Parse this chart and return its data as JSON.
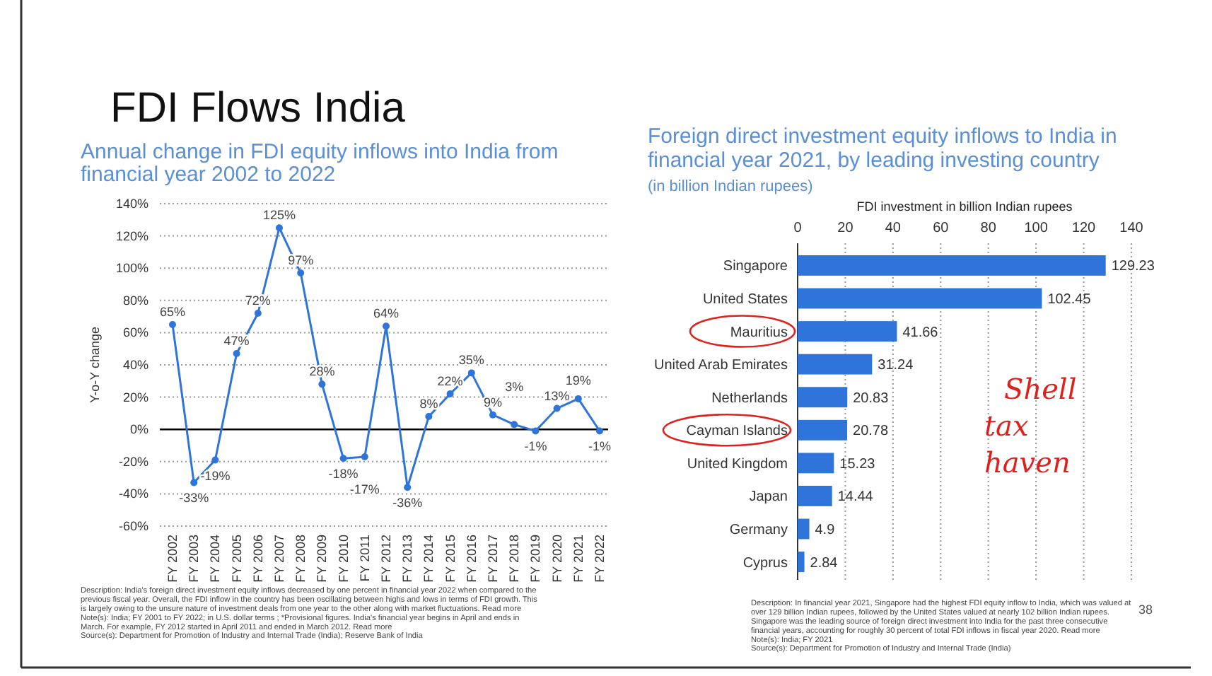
{
  "chart_data": [
    {
      "type": "line",
      "title": "FDI Flows India",
      "subtitle": "Annual change in FDI equity inflows into India from financial year 2002 to 2022",
      "ylabel": "Y-o-Y change",
      "categories": [
        "FY 2002",
        "FY 2003",
        "FY 2004",
        "FY 2005",
        "FY 2006",
        "FY 2007",
        "FY 2008",
        "FY 2009",
        "FY 2010",
        "FY 2011",
        "FY 2012",
        "FY 2013",
        "FY 2014",
        "FY 2015",
        "FY 2016",
        "FY 2017",
        "FY 2018",
        "FY 2019",
        "FY 2020",
        "FY 2021",
        "FY 2022"
      ],
      "series": [
        {
          "color": "#2f74d8",
          "values": [
            65,
            -33,
            -19,
            47,
            72,
            125,
            97,
            28,
            -18,
            -17,
            64,
            -36,
            8,
            22,
            35,
            9,
            3,
            -1,
            13,
            19,
            -1
          ],
          "value_labels": [
            "65%",
            "-33%",
            "-19%",
            "47%",
            "72%",
            "125%",
            "97%",
            "28%",
            "-18%",
            "-17%",
            "64%",
            "-36%",
            "8%",
            "22%",
            "35%",
            "9%",
            "3%",
            "-1%",
            "13%",
            "19%",
            "-1%"
          ]
        }
      ],
      "ylim": [
        -60,
        140
      ],
      "yticks": [
        {
          "value": -60,
          "label": "-60%"
        },
        {
          "value": -40,
          "label": "-40%"
        },
        {
          "value": -20,
          "label": "-20%"
        },
        {
          "value": 0,
          "label": "0%"
        },
        {
          "value": 20,
          "label": "20%"
        },
        {
          "value": 40,
          "label": "40%"
        },
        {
          "value": 60,
          "label": "60%"
        },
        {
          "value": 80,
          "label": "80%"
        },
        {
          "value": 100,
          "label": "100%"
        },
        {
          "value": 120,
          "label": "120%"
        },
        {
          "value": 140,
          "label": "140%"
        }
      ],
      "grid": "y",
      "marker": "circle",
      "annotations": [
        "Description: India's foreign direct investment equity inflows decreased by one percent in financial year 2022 when compared to the previous fiscal year. Overall, the FDI inflow in the country has been oscillating between highs and lows in terms of FDI growth. This is largely owing to the unsure nature of investment deals from one year to the other along with market fluctuations. Read more",
        "Note(s): India; FY 2001 to FY 2022; in U.S. dollar terms ; *Provisional figures. India's financial year begins in April and ends in March. For example, FY 2012 started in April 2011 and ended in March 2012. Read more",
        "Source(s): Department for Promotion of Industry and Internal Trade (India); Reserve Bank of India"
      ]
    },
    {
      "type": "bar",
      "orientation": "horizontal",
      "title": "Foreign direct investment equity inflows to India in financial year 2021, by leading investing country",
      "subtitle": "(in billion Indian rupees)",
      "xlabel": "FDI investment in billion Indian rupees",
      "categories": [
        "Singapore",
        "United States",
        "Mauritius",
        "United Arab Emirates",
        "Netherlands",
        "Cayman Islands",
        "United Kingdom",
        "Japan",
        "Germany",
        "Cyprus"
      ],
      "values": [
        129.23,
        102.45,
        41.66,
        31.24,
        20.83,
        20.78,
        15.23,
        14.44,
        4.9,
        2.84
      ],
      "color": "#2f74d8",
      "xlim": [
        0,
        140
      ],
      "xticks": [
        0,
        20,
        40,
        60,
        80,
        100,
        120,
        140
      ],
      "grid": "x",
      "data_labels": true,
      "annotations": [
        "Description: In financial year 2021, Singapore had the highest FDI equity inflow to India, which was valued at over 129 billion Indian rupees, followed by the United States valued at nearly 102 billion Indian rupees. Singapore was the leading source of foreign direct investment into India for the past three consecutive financial years, accounting for roughly 30 percent of total FDI inflows in fiscal year 2020. Read more",
        "Note(s): India; FY 2021",
        "Source(s): Department for Promotion of Industry and Internal Trade (India)",
        {
          "text": "Shell tax haven"
        },
        "38"
      ]
    }
  ]
}
